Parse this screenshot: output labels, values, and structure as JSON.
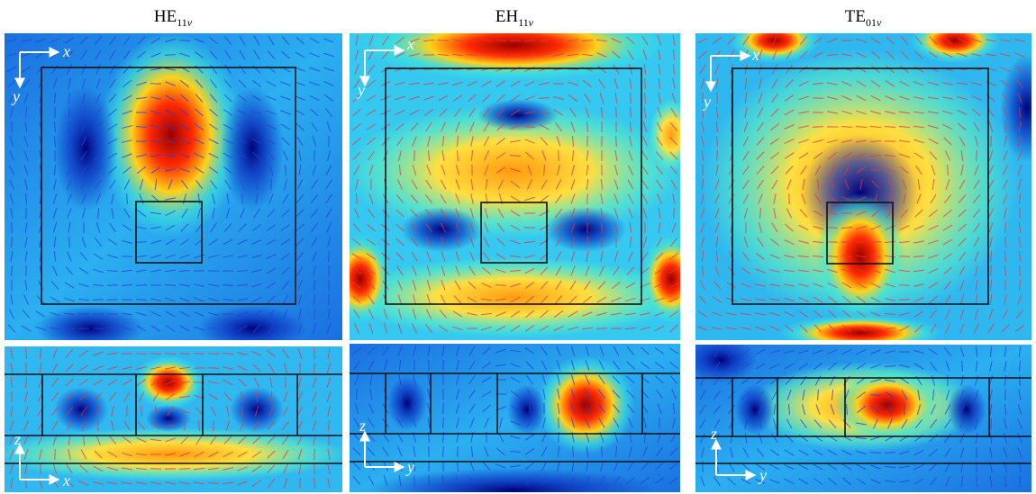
{
  "panels": [
    {
      "mode": "HE",
      "sub_number": "11",
      "sub_letter": "v",
      "top_axes": [
        "x",
        "y"
      ],
      "bottom_axes": [
        "z",
        "x"
      ]
    },
    {
      "mode": "EH",
      "sub_number": "11",
      "sub_letter": "v",
      "top_axes": [
        "x",
        "y"
      ],
      "bottom_axes": [
        "z",
        "y"
      ]
    },
    {
      "mode": "TE",
      "sub_number": "01",
      "sub_letter": "v",
      "top_axes": [
        "x",
        "y"
      ],
      "bottom_axes": [
        "z",
        "y"
      ]
    }
  ]
}
